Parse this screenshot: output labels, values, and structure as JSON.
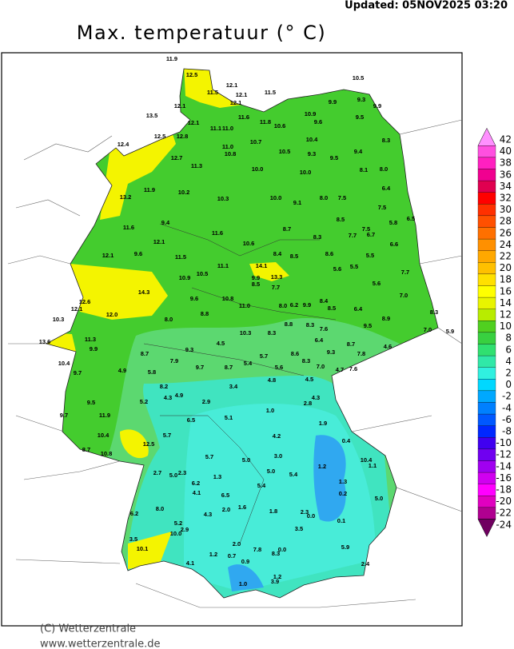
{
  "header": {
    "updated": "Updated: 05NOV2025 03:20"
  },
  "title": "Max. temperatuur (° C)",
  "map": {
    "stations": [
      "11.9",
      "12.5",
      "10.5",
      "12.1",
      "11.5",
      "12.1",
      "11.5",
      "12.1",
      "9.3",
      "9.9",
      "9.9",
      "12.1",
      "13.5",
      "11.6",
      "10.9",
      "9.5",
      "11.8",
      "9.6",
      "10.6",
      "12.1",
      "11.1",
      "11.0",
      "12.5",
      "12.8",
      "10.7",
      "10.4",
      "8.3",
      "12.4",
      "11.0",
      "10.8",
      "10.5",
      "9.3",
      "9.4",
      "12.7",
      "11.3",
      "10.0",
      "10.0",
      "9.5",
      "8.1",
      "8.0",
      "11.9",
      "10.2",
      "13.2",
      "10.3",
      "10.0",
      "9.1",
      "8.0",
      "7.5",
      "6.4",
      "7.5",
      "9.4",
      "8.7",
      "8.5",
      "5.8",
      "6.5",
      "11.6",
      "11.6",
      "8.3",
      "7.7",
      "7.5",
      "6.7",
      "12.1",
      "10.6",
      "6.6",
      "12.1",
      "9.6",
      "11.5",
      "8.4",
      "8.5",
      "8.6",
      "5.5",
      "11.1",
      "14.1",
      "13.3",
      "5.5",
      "5.6",
      "7.7",
      "10.9",
      "10.5",
      "9.9",
      "8.5",
      "7.7",
      "14.3",
      "5.6",
      "12.6",
      "9.6",
      "10.8",
      "11.0",
      "8.0",
      "6.2",
      "9.9",
      "8.4",
      "7.0",
      "12.1",
      "12.0",
      "8.8",
      "8.5",
      "6.4",
      "8.3",
      "10.3",
      "8.0",
      "8.9",
      "9.5",
      "8.8",
      "8.3",
      "7.0",
      "5.9",
      "10.3",
      "8.3",
      "7.6",
      "13.6",
      "11.3",
      "8.7",
      "6.4",
      "8.7",
      "4.6",
      "9.9",
      "9.3",
      "4.5",
      "5.7",
      "8.6",
      "9.3",
      "7.8",
      "7.9",
      "8.7",
      "5.4",
      "8.3",
      "10.4",
      "9.7",
      "4.9",
      "5.8",
      "9.7",
      "5.6",
      "7.0",
      "4.7",
      "7.6",
      "4.5",
      "4.8",
      "8.2",
      "3.4",
      "4.3",
      "4.9",
      "2.9",
      "4.3",
      "2.8",
      "9.5",
      "5.2",
      "1.0",
      "9.7",
      "11.9",
      "5.1",
      "6.5",
      "1.9",
      "10.4",
      "5.7",
      "4.2",
      "0.4",
      "12.5",
      "8.7",
      "10.8",
      "5.7",
      "3.0",
      "10.4",
      "1.1",
      "5.0",
      "1.2",
      "5.0",
      "5.4",
      "2.7",
      "5.0",
      "2.3",
      "1.3",
      "1.3",
      "6.2",
      "5.4",
      "0.2",
      "4.1",
      "6.5",
      "5.0",
      "8.0",
      "1.6",
      "1.8",
      "2.0",
      "4.3",
      "2.3",
      "0.0",
      "6.2",
      "0.1",
      "5.2",
      "2.9",
      "10.0",
      "3.5",
      "3.5",
      "2.0",
      "10.1",
      "7.8",
      "0.0",
      "8.3",
      "5.9",
      "1.2",
      "0.7",
      "4.1",
      "0.9",
      "2.4",
      "1.2",
      "3.9",
      "1.0"
    ]
  },
  "legend": {
    "levels": [
      42,
      40,
      38,
      36,
      34,
      32,
      30,
      28,
      26,
      24,
      22,
      20,
      18,
      16,
      14,
      12,
      10,
      8,
      6,
      4,
      2,
      0,
      -2,
      -4,
      -6,
      -8,
      -10,
      -12,
      -14,
      -16,
      -18,
      -20,
      -22,
      -24
    ],
    "colors": [
      "#ff90ff",
      "#ff50e0",
      "#ff20c0",
      "#f00090",
      "#e00050",
      "#ff0000",
      "#ff3000",
      "#ff5000",
      "#ff7000",
      "#ff9000",
      "#ffa800",
      "#ffc000",
      "#ffe000",
      "#ffff00",
      "#e8f400",
      "#b8ec00",
      "#50d020",
      "#38d040",
      "#30e070",
      "#30e8a8",
      "#30f0e0",
      "#00d8ff",
      "#00a8ff",
      "#0080ff",
      "#0058ff",
      "#0028ff",
      "#4000f0",
      "#7000f0",
      "#a000f0",
      "#d000f0",
      "#ff00ff",
      "#e000c0",
      "#b00090",
      "#700060"
    ]
  },
  "credits": {
    "copyright": "(C) Wetterzentrale",
    "url": "www.wetterzentrale.de"
  }
}
